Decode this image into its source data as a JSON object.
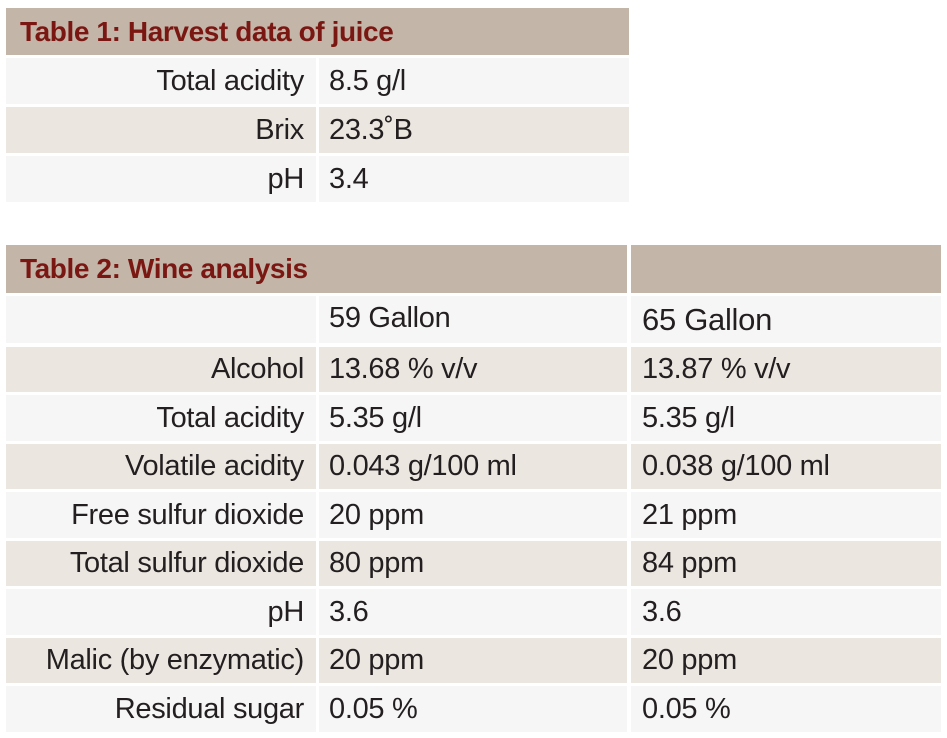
{
  "table1": {
    "title": "Table 1: Harvest data of juice",
    "rows": [
      {
        "label": "Total acidity",
        "value": "8.5 g/l"
      },
      {
        "label": "Brix",
        "value": "23.3˚B"
      },
      {
        "label": "pH",
        "value": "3.4"
      }
    ]
  },
  "table2": {
    "title": "Table 2: Wine analysis",
    "columns": [
      "59 Gallon",
      "65 Gallon"
    ],
    "rows": [
      {
        "label": "Alcohol",
        "values": [
          "13.68 % v/v",
          "13.87 % v/v"
        ]
      },
      {
        "label": "Total acidity",
        "values": [
          "5.35 g/l",
          "5.35 g/l"
        ]
      },
      {
        "label": "Volatile acidity",
        "values": [
          "0.043 g/100 ml",
          "0.038 g/100 ml"
        ]
      },
      {
        "label": "Free sulfur dioxide",
        "values": [
          "20 ppm",
          "21 ppm"
        ]
      },
      {
        "label": "Total sulfur dioxide",
        "values": [
          "80 ppm",
          "84 ppm"
        ]
      },
      {
        "label": "pH",
        "values": [
          "3.6",
          "3.6"
        ]
      },
      {
        "label": "Malic (by enzymatic)",
        "values": [
          "20 ppm",
          "20 ppm"
        ]
      },
      {
        "label": "Residual sugar",
        "values": [
          "0.05 %",
          "0.05 %"
        ]
      }
    ]
  },
  "colors": {
    "header_bg": "#c3b5a8",
    "header_text": "#7a1712",
    "row_light": "#f6f6f6",
    "row_tan": "#ece6e0"
  }
}
